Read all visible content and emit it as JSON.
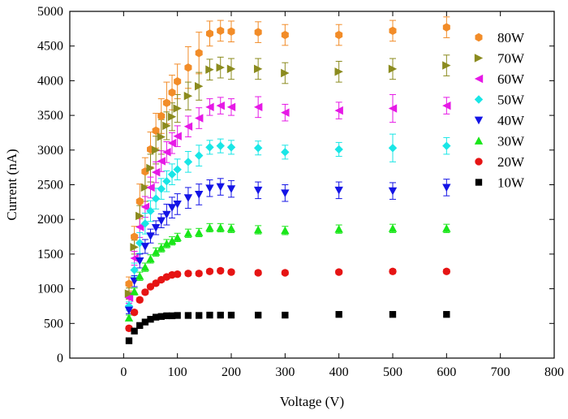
{
  "chart_data": {
    "type": "scatter",
    "xlabel": "Voltage (V)",
    "ylabel": "Current (nA)",
    "xlim": [
      -100,
      800
    ],
    "ylim": [
      0,
      5000
    ],
    "xticks": [
      "0",
      "100",
      "200",
      "300",
      "400",
      "500",
      "600",
      "700",
      "800"
    ],
    "yticks": [
      "0",
      "500",
      "1000",
      "1500",
      "2000",
      "2500",
      "3000",
      "3500",
      "4000",
      "4500",
      "5000"
    ],
    "grid": false,
    "legend_position": "top-right",
    "x": [
      10,
      20,
      30,
      40,
      50,
      60,
      70,
      80,
      90,
      100,
      120,
      140,
      160,
      180,
      200,
      250,
      300,
      400,
      500,
      600
    ],
    "series": [
      {
        "name": "80W",
        "marker": "hexagon",
        "color": "#F28C28",
        "values": [
          1070,
          1750,
          2260,
          2690,
          3010,
          3280,
          3490,
          3680,
          3830,
          3990,
          4190,
          4400,
          4680,
          4720,
          4710,
          4700,
          4660,
          4660,
          4720,
          4770
        ],
        "errors": [
          100,
          150,
          250,
          200,
          250,
          250,
          250,
          300,
          250,
          250,
          300,
          300,
          180,
          150,
          150,
          150,
          150,
          150,
          150,
          150
        ]
      },
      {
        "name": "70W",
        "marker": "triangle-right",
        "color": "#8B8B1E",
        "values": [
          930,
          1600,
          2050,
          2460,
          2740,
          3000,
          3190,
          3350,
          3480,
          3600,
          3780,
          3920,
          4160,
          4190,
          4170,
          4170,
          4110,
          4130,
          4170,
          4220
        ],
        "errors": [
          80,
          100,
          150,
          200,
          200,
          200,
          250,
          200,
          200,
          200,
          200,
          200,
          150,
          150,
          150,
          150,
          150,
          150,
          150,
          150
        ]
      },
      {
        "name": "60W",
        "marker": "triangle-left",
        "color": "#E619E6",
        "values": [
          870,
          1440,
          1890,
          2180,
          2460,
          2680,
          2840,
          2970,
          3100,
          3200,
          3340,
          3460,
          3620,
          3640,
          3620,
          3620,
          3540,
          3570,
          3600,
          3640
        ],
        "errors": [
          80,
          100,
          150,
          150,
          150,
          150,
          150,
          150,
          150,
          150,
          150,
          150,
          120,
          120,
          120,
          150,
          120,
          120,
          200,
          120
        ]
      },
      {
        "name": "50W",
        "marker": "diamond",
        "color": "#19E6E6",
        "values": [
          750,
          1270,
          1660,
          1940,
          2120,
          2300,
          2440,
          2550,
          2650,
          2720,
          2830,
          2920,
          3040,
          3060,
          3040,
          3030,
          2970,
          3010,
          3030,
          3060
        ],
        "errors": [
          60,
          100,
          150,
          150,
          150,
          150,
          150,
          150,
          150,
          150,
          150,
          150,
          100,
          100,
          100,
          100,
          100,
          100,
          200,
          120
        ]
      },
      {
        "name": "40W",
        "marker": "triangle-down",
        "color": "#1414E6",
        "values": [
          690,
          1110,
          1400,
          1610,
          1760,
          1880,
          1980,
          2070,
          2170,
          2220,
          2310,
          2360,
          2450,
          2470,
          2440,
          2420,
          2380,
          2420,
          2410,
          2460
        ],
        "errors": [
          50,
          80,
          100,
          100,
          100,
          100,
          100,
          150,
          150,
          150,
          150,
          150,
          120,
          120,
          120,
          120,
          120,
          120,
          120,
          120
        ]
      },
      {
        "name": "30W",
        "marker": "triangle-up",
        "color": "#19E619",
        "values": [
          580,
          960,
          1180,
          1310,
          1430,
          1530,
          1590,
          1650,
          1690,
          1740,
          1800,
          1810,
          1880,
          1880,
          1870,
          1850,
          1840,
          1860,
          1870,
          1870
        ],
        "errors": [
          40,
          50,
          60,
          60,
          60,
          60,
          60,
          60,
          60,
          60,
          60,
          60,
          60,
          60,
          60,
          60,
          60,
          60,
          60,
          60
        ]
      },
      {
        "name": "20W",
        "marker": "circle",
        "color": "#E61414",
        "values": [
          430,
          660,
          840,
          950,
          1030,
          1080,
          1130,
          1170,
          1200,
          1210,
          1220,
          1220,
          1250,
          1260,
          1240,
          1230,
          1230,
          1240,
          1250,
          1250
        ],
        "errors": [
          30,
          30,
          30,
          30,
          30,
          30,
          30,
          30,
          30,
          30,
          30,
          30,
          30,
          30,
          30,
          30,
          30,
          30,
          30,
          30
        ]
      },
      {
        "name": "10W",
        "marker": "square",
        "color": "#000000",
        "values": [
          250,
          390,
          470,
          520,
          560,
          590,
          600,
          610,
          610,
          615,
          615,
          615,
          620,
          620,
          620,
          620,
          620,
          630,
          630,
          630
        ],
        "errors": [
          20,
          20,
          20,
          20,
          20,
          20,
          20,
          20,
          20,
          20,
          20,
          20,
          20,
          20,
          20,
          20,
          20,
          20,
          20,
          20
        ]
      }
    ]
  }
}
